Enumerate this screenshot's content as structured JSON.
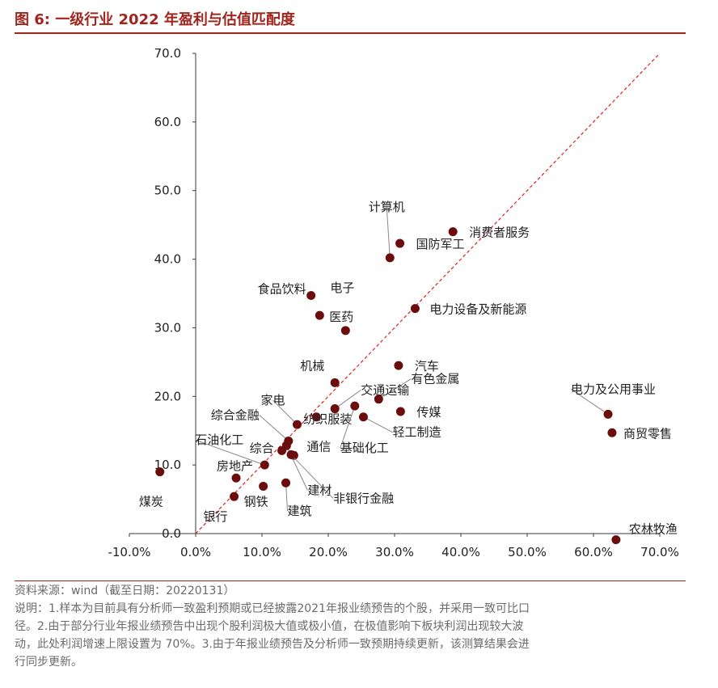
{
  "figure": {
    "title": "图 6:  一级行业 2022 年盈利与估值匹配度",
    "source": "资料来源：wind（截至日期：20220131）",
    "note_lines": [
      "说明：1.样本为目前具有分析师一致盈利预期或已经披露2021年报业绩预告的个股，并采用一致可比口",
      "径。2.由于部分行业年报业绩预告中出现个股利润极大值或极小值，在极值影响下板块利润出现较大波",
      "动，此处利润增速上限设置为 70%。3.由于年报业绩预告及分析师一致预期持续更新，该测算结果会进",
      "行同步更新。"
    ]
  },
  "chart_data": {
    "type": "scatter",
    "xlim": [
      -0.1,
      0.7
    ],
    "ylim": [
      0.0,
      70.0
    ],
    "x_ticks": [
      -0.1,
      0.0,
      0.1,
      0.2,
      0.3,
      0.4,
      0.5,
      0.6,
      0.7
    ],
    "x_tick_labels": [
      "-10.0%",
      "0.0%",
      "10.0%",
      "20.0%",
      "30.0%",
      "40.0%",
      "50.0%",
      "60.0%",
      "70.0%"
    ],
    "y_ticks": [
      0,
      10,
      20,
      30,
      40,
      50,
      60,
      70
    ],
    "y_tick_labels": [
      "0.0",
      "10.0",
      "20.0",
      "30.0",
      "40.0",
      "50.0",
      "60.0",
      "70.0"
    ],
    "grid": false,
    "reference_line": {
      "from": [
        0.0,
        0.0
      ],
      "to": [
        0.7,
        70.0
      ],
      "style": "dashed",
      "color": "#e02020"
    },
    "marker_color": "#6b0d0d",
    "points": [
      {
        "name": "计算机",
        "x": 0.293,
        "y": 40.2,
        "dx": -4,
        "dy": -58,
        "anchor": "middle",
        "leader": true
      },
      {
        "name": "国防军工",
        "x": 0.308,
        "y": 42.3,
        "dx": 20,
        "dy": 6,
        "anchor": "start",
        "leader": false
      },
      {
        "name": "消费者服务",
        "x": 0.388,
        "y": 44.0,
        "dx": 20,
        "dy": 6,
        "anchor": "start",
        "leader": false
      },
      {
        "name": "食品饮料",
        "x": 0.174,
        "y": 34.7,
        "dx": -6,
        "dy": -3,
        "anchor": "end",
        "leader": false
      },
      {
        "name": "电子",
        "x": 0.187,
        "y": 31.8,
        "dx": 28,
        "dy": -29,
        "anchor": "middle",
        "leader": false
      },
      {
        "name": "医药",
        "x": 0.226,
        "y": 29.6,
        "dx": -5,
        "dy": -12,
        "anchor": "middle",
        "leader": false
      },
      {
        "name": "电力设备及新能源",
        "x": 0.331,
        "y": 32.8,
        "dx": 18,
        "dy": 6,
        "anchor": "start",
        "leader": false
      },
      {
        "name": "机械",
        "x": 0.21,
        "y": 22.0,
        "dx": -28,
        "dy": -16,
        "anchor": "middle",
        "leader": false
      },
      {
        "name": "汽车",
        "x": 0.306,
        "y": 24.5,
        "dx": 20,
        "dy": 6,
        "anchor": "start",
        "leader": false
      },
      {
        "name": "有色金属",
        "x": 0.276,
        "y": 19.6,
        "dx": 40,
        "dy": -20,
        "anchor": "start",
        "leader": true
      },
      {
        "name": "交通运输",
        "x": 0.21,
        "y": 18.2,
        "dx": 32,
        "dy": -18,
        "anchor": "start",
        "leader": true
      },
      {
        "name": "传媒",
        "x": 0.309,
        "y": 17.8,
        "dx": 20,
        "dy": 6,
        "anchor": "start",
        "leader": false
      },
      {
        "name": "纺织服装",
        "x": 0.182,
        "y": 17.0,
        "dx": -16,
        "dy": 8,
        "anchor": "start",
        "leader": false
      },
      {
        "name": "轻工制造",
        "x": 0.253,
        "y": 17.0,
        "dx": 36,
        "dy": 24,
        "anchor": "start",
        "leader": true
      },
      {
        "name": "基础化工",
        "x": 0.24,
        "y": 18.6,
        "dx": -18,
        "dy": 57,
        "anchor": "start",
        "leader": true
      },
      {
        "name": "家电",
        "x": 0.153,
        "y": 15.9,
        "dx": -30,
        "dy": -25,
        "anchor": "middle",
        "leader": true
      },
      {
        "name": "综合金融",
        "x": 0.14,
        "y": 13.5,
        "dx": -36,
        "dy": -27,
        "anchor": "end",
        "leader": true
      },
      {
        "name": "通信",
        "x": 0.148,
        "y": 11.4,
        "dx": 16,
        "dy": -6,
        "anchor": "start",
        "leader": false
      },
      {
        "name": "综合",
        "x": 0.13,
        "y": 12.1,
        "dx": -40,
        "dy": 2,
        "anchor": "start",
        "leader": false
      },
      {
        "name": "石油化工",
        "x": 0.104,
        "y": 10.0,
        "dx": -86,
        "dy": -26,
        "anchor": "start",
        "leader": true
      },
      {
        "name": "房地产",
        "x": 0.061,
        "y": 8.1,
        "dx": -24,
        "dy": -10,
        "anchor": "start",
        "leader": false
      },
      {
        "name": "建材",
        "x": 0.137,
        "y": 12.8,
        "dx": 26,
        "dy": 60,
        "anchor": "start",
        "leader": true
      },
      {
        "name": "非银行金融",
        "x": 0.144,
        "y": 11.5,
        "dx": 52,
        "dy": 59,
        "anchor": "start",
        "leader": true
      },
      {
        "name": "建筑",
        "x": 0.136,
        "y": 7.4,
        "dx": 2,
        "dy": 40,
        "anchor": "start",
        "leader": true
      },
      {
        "name": "钢铁",
        "x": 0.102,
        "y": 6.9,
        "dx": -24,
        "dy": 24,
        "anchor": "start",
        "leader": false
      },
      {
        "name": "银行",
        "x": 0.058,
        "y": 5.4,
        "dx": -38,
        "dy": 30,
        "anchor": "start",
        "leader": false
      },
      {
        "name": "煤炭",
        "x": -0.054,
        "y": 9.0,
        "dx": -26,
        "dy": 42,
        "anchor": "start",
        "leader": false
      },
      {
        "name": "电力及公用事业",
        "x": 0.622,
        "y": 17.4,
        "dx": -46,
        "dy": -26,
        "anchor": "start",
        "leader": true
      },
      {
        "name": "商贸零售",
        "x": 0.628,
        "y": 14.7,
        "dx": 14,
        "dy": 6,
        "anchor": "start",
        "leader": false
      },
      {
        "name": "农林牧渔",
        "x": 0.634,
        "y": -0.9,
        "dx": 16,
        "dy": -8,
        "anchor": "start",
        "leader": false
      }
    ]
  }
}
